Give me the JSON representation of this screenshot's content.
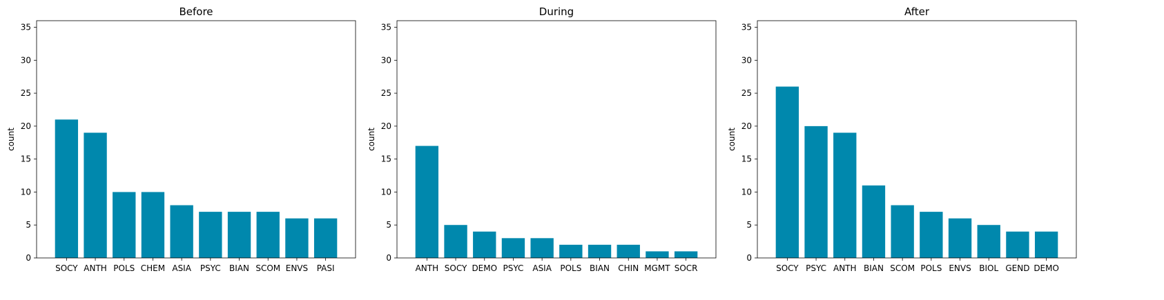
{
  "colors": {
    "bar": "#0088ad",
    "axis": "#000000",
    "background": "#ffffff"
  },
  "chart_data": [
    {
      "type": "bar",
      "title": "Before",
      "xlabel": "",
      "ylabel": "count",
      "ylim": [
        0,
        36
      ],
      "yticks": [
        0,
        5,
        10,
        15,
        20,
        25,
        30,
        35
      ],
      "categories": [
        "SOCY",
        "ANTH",
        "POLS",
        "CHEM",
        "ASIA",
        "PSYC",
        "BIAN",
        "SCOM",
        "ENVS",
        "PASI"
      ],
      "values": [
        21,
        19,
        10,
        10,
        8,
        7,
        7,
        7,
        6,
        6
      ]
    },
    {
      "type": "bar",
      "title": "During",
      "xlabel": "",
      "ylabel": "count",
      "ylim": [
        0,
        36
      ],
      "yticks": [
        0,
        5,
        10,
        15,
        20,
        25,
        30,
        35
      ],
      "categories": [
        "ANTH",
        "SOCY",
        "DEMO",
        "PSYC",
        "ASIA",
        "POLS",
        "BIAN",
        "CHIN",
        "MGMT",
        "SOCR"
      ],
      "values": [
        17,
        5,
        4,
        3,
        3,
        2,
        2,
        2,
        1,
        1
      ]
    },
    {
      "type": "bar",
      "title": "After",
      "xlabel": "",
      "ylabel": "count",
      "ylim": [
        0,
        36
      ],
      "yticks": [
        0,
        5,
        10,
        15,
        20,
        25,
        30,
        35
      ],
      "categories": [
        "SOCY",
        "PSYC",
        "ANTH",
        "BIAN",
        "SCOM",
        "POLS",
        "ENVS",
        "BIOL",
        "GEND",
        "DEMO"
      ],
      "values": [
        26,
        20,
        19,
        11,
        8,
        7,
        6,
        5,
        4,
        4
      ]
    }
  ]
}
